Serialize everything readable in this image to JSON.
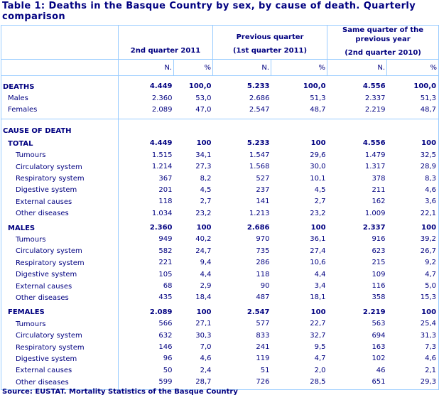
{
  "title": "Table 1: Deaths in the Basque Country by sex, by cause of death. Quarterly comparison",
  "headers": {
    "groups": [
      {
        "line1": "",
        "line2": "2nd quarter 2011"
      },
      {
        "line1": "Previous quarter",
        "line2": "(1st quarter 2011)"
      },
      {
        "line1": "Same quarter of the previous year",
        "line2": "(2nd quarter 2010)"
      }
    ],
    "sub": [
      "N.",
      "%",
      "N.",
      "%",
      "N.",
      "%"
    ]
  },
  "sections": [
    {
      "rows": [
        {
          "label": "DEATHS",
          "level": 0,
          "bold": true,
          "values": [
            "4.449",
            "100,0",
            "5.233",
            "100,0",
            "4.556",
            "100,0"
          ]
        },
        {
          "label": "Males",
          "level": 1,
          "values": [
            "2.360",
            "53,0",
            "2.686",
            "51,3",
            "2.337",
            "51,3"
          ]
        },
        {
          "label": "Females",
          "level": 1,
          "values": [
            "2.089",
            "47,0",
            "2.547",
            "48,7",
            "2.219",
            "48,7"
          ]
        }
      ]
    },
    {
      "rows": [
        {
          "label": "CAUSE OF DEATH",
          "level": 0,
          "bold": true,
          "values": [
            "",
            "",
            "",
            "",
            "",
            ""
          ]
        },
        {
          "label": "TOTAL",
          "level": 1,
          "bold": true,
          "values": [
            "4.449",
            "100",
            "5.233",
            "100",
            "4.556",
            "100"
          ]
        },
        {
          "label": "Tumours",
          "level": 2,
          "values": [
            "1.515",
            "34,1",
            "1.547",
            "29,6",
            "1.479",
            "32,5"
          ]
        },
        {
          "label": "Circulatory system",
          "level": 2,
          "values": [
            "1.214",
            "27,3",
            "1.568",
            "30,0",
            "1.317",
            "28,9"
          ]
        },
        {
          "label": "Respiratory system",
          "level": 2,
          "values": [
            "367",
            "8,2",
            "527",
            "10,1",
            "378",
            "8,3"
          ]
        },
        {
          "label": "Digestive system",
          "level": 2,
          "values": [
            "201",
            "4,5",
            "237",
            "4,5",
            "211",
            "4,6"
          ]
        },
        {
          "label": "External causes",
          "level": 2,
          "values": [
            "118",
            "2,7",
            "141",
            "2,7",
            "162",
            "3,6"
          ]
        },
        {
          "label": "Other diseases",
          "level": 2,
          "values": [
            "1.034",
            "23,2",
            "1.213",
            "23,2",
            "1.009",
            "22,1"
          ]
        },
        {
          "spacer": true
        },
        {
          "label": "MALES",
          "level": 1,
          "bold": true,
          "values": [
            "2.360",
            "100",
            "2.686",
            "100",
            "2.337",
            "100"
          ]
        },
        {
          "label": "Tumours",
          "level": 2,
          "values": [
            "949",
            "40,2",
            "970",
            "36,1",
            "916",
            "39,2"
          ]
        },
        {
          "label": "Circulatory system",
          "level": 2,
          "values": [
            "582",
            "24,7",
            "735",
            "27,4",
            "623",
            "26,7"
          ]
        },
        {
          "label": "Respiratory system",
          "level": 2,
          "values": [
            "221",
            "9,4",
            "286",
            "10,6",
            "215",
            "9,2"
          ]
        },
        {
          "label": "Digestive system",
          "level": 2,
          "values": [
            "105",
            "4,4",
            "118",
            "4,4",
            "109",
            "4,7"
          ]
        },
        {
          "label": "External causes",
          "level": 2,
          "values": [
            "68",
            "2,9",
            "90",
            "3,4",
            "116",
            "5,0"
          ]
        },
        {
          "label": "Other diseases",
          "level": 2,
          "values": [
            "435",
            "18,4",
            "487",
            "18,1",
            "358",
            "15,3"
          ]
        },
        {
          "spacer": true
        },
        {
          "label": "FEMALES",
          "level": 1,
          "bold": true,
          "values": [
            "2.089",
            "100",
            "2.547",
            "100",
            "2.219",
            "100"
          ]
        },
        {
          "label": "Tumours",
          "level": 2,
          "values": [
            "566",
            "27,1",
            "577",
            "22,7",
            "563",
            "25,4"
          ]
        },
        {
          "label": "Circulatory system",
          "level": 2,
          "values": [
            "632",
            "30,3",
            "833",
            "32,7",
            "694",
            "31,3"
          ]
        },
        {
          "label": "Respiratory system",
          "level": 2,
          "values": [
            "146",
            "7,0",
            "241",
            "9,5",
            "163",
            "7,3"
          ]
        },
        {
          "label": "Digestive system",
          "level": 2,
          "values": [
            "96",
            "4,6",
            "119",
            "4,7",
            "102",
            "4,6"
          ]
        },
        {
          "label": "External causes",
          "level": 2,
          "values": [
            "50",
            "2,4",
            "51",
            "2,0",
            "46",
            "2,1"
          ]
        },
        {
          "label": "Other diseases",
          "level": 2,
          "values": [
            "599",
            "28,7",
            "726",
            "28,5",
            "651",
            "29,3"
          ]
        }
      ]
    }
  ],
  "source": "Source: EUSTAT. Mortality Statistics of the Basque Country"
}
